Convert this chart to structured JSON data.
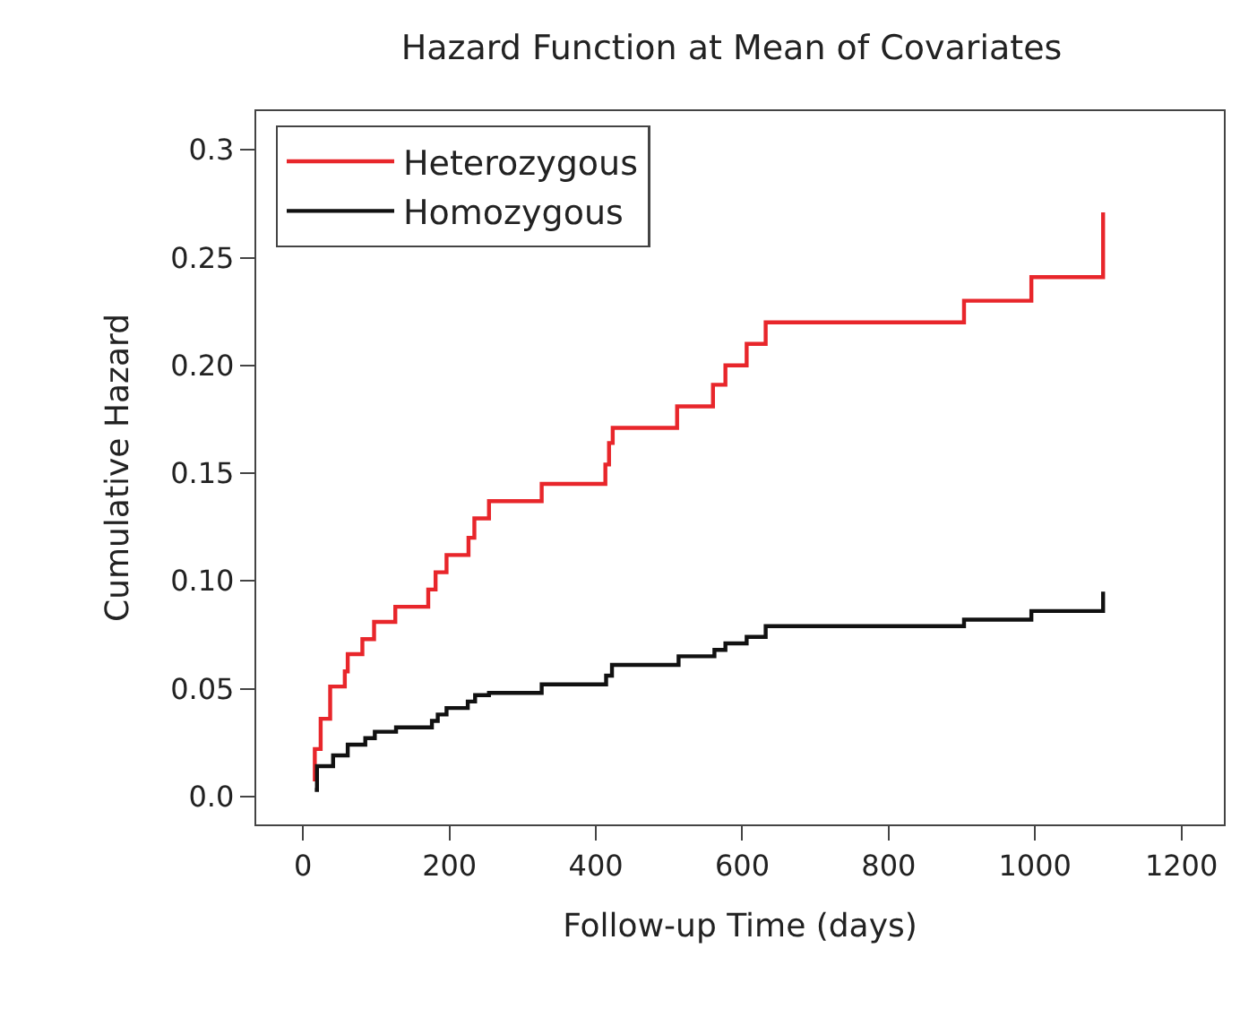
{
  "chart_data": {
    "type": "step",
    "title": "Hazard Function at Mean of Covariates",
    "xlabel": "Follow-up Time (days)",
    "ylabel": "Cumulative Hazard",
    "xlim": [
      -64,
      1258
    ],
    "xticks": [
      0,
      200,
      400,
      600,
      800,
      1000,
      1200
    ],
    "ylim": [
      -0.013,
      0.318
    ],
    "yticks": [
      {
        "value": 0,
        "label": "0.0"
      },
      0.05,
      {
        "value": 0.1,
        "label": "0.10"
      },
      0.15,
      {
        "value": 0.2,
        "label": "0.20"
      },
      0.25,
      0.3
    ],
    "grid": false,
    "legend": "top left",
    "line_style": "solid",
    "marker": "none",
    "series": [
      {
        "name": "Heterozygous",
        "color": "#e8262b",
        "x": [
          16,
          16,
          24,
          37,
          57,
          61,
          81,
          97,
          126,
          171,
          181,
          196,
          226,
          234,
          254,
          326,
          413,
          418,
          423,
          511,
          560,
          577,
          606,
          632,
          903,
          995,
          1093,
          1093
        ],
        "values": [
          0.007,
          0.022,
          0.036,
          0.051,
          0.058,
          0.066,
          0.073,
          0.081,
          0.088,
          0.096,
          0.104,
          0.112,
          0.12,
          0.129,
          0.137,
          0.145,
          0.154,
          0.164,
          0.171,
          0.181,
          0.191,
          0.2,
          0.21,
          0.22,
          0.23,
          0.241,
          0.241,
          0.271
        ]
      },
      {
        "name": "Homozygous",
        "color": "#111111",
        "x": [
          16,
          19,
          41,
          61,
          85,
          98,
          127,
          176,
          184,
          196,
          225,
          235,
          254,
          326,
          414,
          422,
          513,
          562,
          577,
          606,
          632,
          903,
          995,
          1093,
          1093
        ],
        "values": [
          0.003,
          0.014,
          0.019,
          0.024,
          0.027,
          0.03,
          0.032,
          0.035,
          0.038,
          0.041,
          0.044,
          0.047,
          0.048,
          0.052,
          0.056,
          0.061,
          0.065,
          0.068,
          0.071,
          0.074,
          0.079,
          0.082,
          0.086,
          0.086,
          0.095
        ]
      }
    ]
  }
}
